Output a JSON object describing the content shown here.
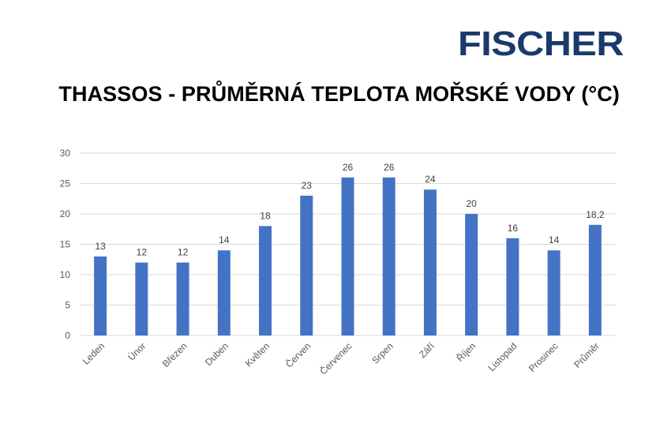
{
  "logo": {
    "text": "FISCHER",
    "color": "#1b3a6b"
  },
  "chart_data": {
    "type": "bar",
    "title": "THASSOS - PRŮMĚRNÁ TEPLOTA MOŘSKÉ VODY (°C)",
    "xlabel": "",
    "ylabel": "",
    "ylim": [
      0,
      30
    ],
    "yticks": [
      0,
      5,
      10,
      15,
      20,
      25,
      30
    ],
    "grid": true,
    "legend": "none",
    "bar_color": "#4472c4",
    "categories": [
      "Leden",
      "Únor",
      "Březen",
      "Duben",
      "Květen",
      "Červen",
      "Červenec",
      "Srpen",
      "Září",
      "Říjen",
      "Listopad",
      "Prosinec",
      "Průměr"
    ],
    "values": [
      13,
      12,
      12,
      14,
      18,
      23,
      26,
      26,
      24,
      20,
      16,
      14,
      18.2
    ],
    "data_labels": [
      "13",
      "12",
      "12",
      "14",
      "18",
      "23",
      "26",
      "26",
      "24",
      "20",
      "16",
      "14",
      "18,2"
    ]
  }
}
